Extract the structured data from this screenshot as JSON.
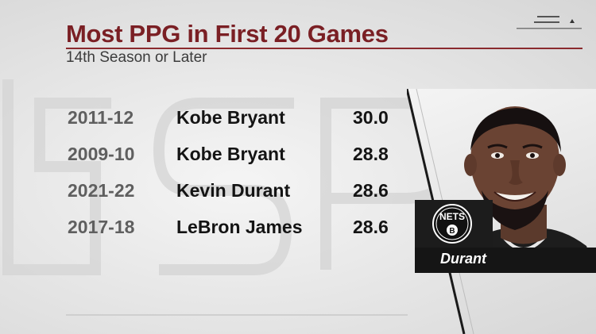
{
  "graphic": {
    "title": "Most PPG in First 20 Games",
    "subtitle": "14th Season or Later",
    "accent_color": "#7a1f24"
  },
  "table": {
    "rows": [
      {
        "season": "2011-12",
        "player": "Kobe Bryant",
        "ppg": "30.0"
      },
      {
        "season": "2009-10",
        "player": "Kobe Bryant",
        "ppg": "28.8"
      },
      {
        "season": "2021-22",
        "player": "Kevin Durant",
        "ppg": "28.6"
      },
      {
        "season": "2017-18",
        "player": "LeBron James",
        "ppg": "28.6"
      }
    ]
  },
  "player_card": {
    "logo_text": "NETS",
    "logo_letter": "B",
    "name": "Durant"
  },
  "icons": {
    "menu": "menu-lines-icon",
    "logo": "nets-logo-icon"
  }
}
